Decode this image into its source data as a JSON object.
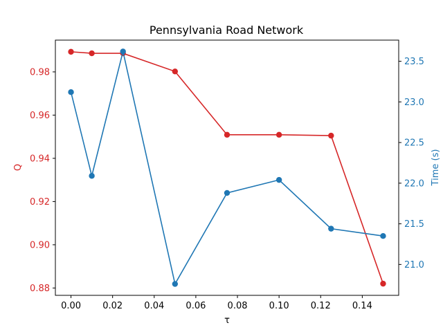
{
  "chart_data": {
    "type": "line",
    "title": "Pennsylvania Road Network",
    "xlabel": "τ",
    "x": [
      0.0,
      0.01,
      0.025,
      0.05,
      0.075,
      0.1,
      0.125,
      0.15
    ],
    "xlim": [
      -0.0075,
      0.1575
    ],
    "xticks": [
      "0.00",
      "0.02",
      "0.04",
      "0.06",
      "0.08",
      "0.10",
      "0.12",
      "0.14"
    ],
    "xtick_values": [
      0.0,
      0.02,
      0.04,
      0.06,
      0.08,
      0.1,
      0.12,
      0.14
    ],
    "left_axis": {
      "label": "Q",
      "color": "#d62728",
      "ylim": [
        0.8766,
        0.9947
      ],
      "ticks": [
        "0.88",
        "0.90",
        "0.92",
        "0.94",
        "0.96",
        "0.98"
      ],
      "tick_values": [
        0.88,
        0.9,
        0.92,
        0.94,
        0.96,
        0.98
      ]
    },
    "right_axis": {
      "label": "Time (s)",
      "color": "#1f77b4",
      "ylim": [
        20.62,
        23.76
      ],
      "ticks": [
        "21.0",
        "21.5",
        "22.0",
        "22.5",
        "23.0",
        "23.5"
      ],
      "tick_values": [
        21.0,
        21.5,
        22.0,
        22.5,
        23.0,
        23.5
      ]
    },
    "series": [
      {
        "axis": "left",
        "color": "#d62728",
        "marker": "circle",
        "values": [
          0.9893,
          0.9886,
          0.9886,
          0.9802,
          0.9509,
          0.9509,
          0.9505,
          0.882
        ]
      },
      {
        "axis": "right",
        "color": "#1f77b4",
        "marker": "circle",
        "values": [
          23.12,
          22.09,
          23.62,
          20.76,
          21.88,
          22.04,
          21.44,
          21.35
        ]
      }
    ],
    "grid": false,
    "legend": "none"
  }
}
